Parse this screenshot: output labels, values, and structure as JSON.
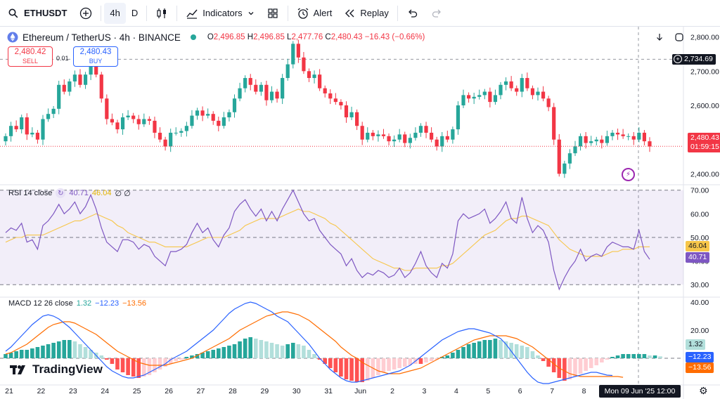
{
  "toolbar": {
    "symbol": "ETHUSDT",
    "interval": "4h",
    "interval_menu": "D",
    "indicators_label": "Indicators",
    "alert_label": "Alert",
    "replay_label": "Replay"
  },
  "header": {
    "title": "Ethereum / TetherUS · 4h · BINANCE",
    "o_label": "O",
    "o_value": "2,496.85",
    "h_label": "H",
    "h_value": "2,496.85",
    "l_label": "L",
    "l_value": "2,477.76",
    "c_label": "C",
    "c_value": "2,480.43",
    "change": "−16.43 (−0.66%)"
  },
  "trade": {
    "sell_price": "2,480.42",
    "sell_label": "SELL",
    "buy_price": "2,480.43",
    "buy_label": "BUY",
    "spread": "0.01"
  },
  "rsi_legend": {
    "name": "RSI 14 close",
    "rsi": "40.71",
    "ma": "46.04",
    "extra": "∅ ∅"
  },
  "macd_legend": {
    "name": "MACD 12 26 close",
    "hist": "1.32",
    "macd": "−12.23",
    "signal": "−13.56"
  },
  "logo_text": "TradingView",
  "crosshair_price": "2,734.69",
  "last_price": "2,480.43",
  "countdown": "01:59:15",
  "crosshair_date": "Mon 09 Jun '25   12:00",
  "colors": {
    "up": "#26a69a",
    "down": "#f23645",
    "rsi": "#7e57c2",
    "rsi_ma": "#f7c64a",
    "macd": "#2962ff",
    "signal": "#ff6d00",
    "hist_up": "#26a69a",
    "hist_up_light": "#b2dfdb",
    "hist_down": "#ff5252",
    "hist_down_light": "#ffcdd2"
  },
  "chart_data": [
    {
      "type": "candlestick",
      "title": "Ethereum / TetherUS · 4h · BINANCE",
      "ylim": [
        2370,
        2830
      ],
      "y_ticks": [
        "2,400.00",
        "2,500.00",
        "2,600.00",
        "2,700.00",
        "2,800.00"
      ],
      "y_tick_values": [
        2400,
        2500,
        2600,
        2700,
        2800
      ],
      "x_ticks": [
        "21",
        "22",
        "23",
        "24",
        "25",
        "26",
        "27",
        "28",
        "29",
        "30",
        "31",
        "Jun",
        "2",
        "3",
        "4",
        "5",
        "6",
        "7",
        "8"
      ],
      "candles_per_day": 6,
      "close": [
        2510,
        2540,
        2530,
        2565,
        2515,
        2520,
        2500,
        2560,
        2575,
        2590,
        2660,
        2640,
        2670,
        2690,
        2660,
        2690,
        2730,
        2690,
        2620,
        2560,
        2550,
        2530,
        2565,
        2570,
        2560,
        2545,
        2560,
        2555,
        2520,
        2500,
        2480,
        2520,
        2520,
        2525,
        2540,
        2570,
        2585,
        2570,
        2575,
        2555,
        2540,
        2565,
        2580,
        2620,
        2650,
        2680,
        2660,
        2640,
        2660,
        2615,
        2640,
        2620,
        2680,
        2720,
        2780,
        2740,
        2700,
        2680,
        2690,
        2650,
        2635,
        2620,
        2610,
        2600,
        2565,
        2580,
        2540,
        2500,
        2520,
        2510,
        2515,
        2510,
        2495,
        2500,
        2515,
        2490,
        2505,
        2520,
        2540,
        2520,
        2500,
        2480,
        2510,
        2500,
        2530,
        2600,
        2630,
        2620,
        2625,
        2630,
        2640,
        2610,
        2630,
        2660,
        2670,
        2650,
        2640,
        2680,
        2650,
        2630,
        2640,
        2620,
        2595,
        2500,
        2400,
        2430,
        2460,
        2480,
        2510,
        2490,
        2495,
        2500,
        2490,
        2510,
        2520,
        2515,
        2510,
        2510,
        2500,
        2520,
        2495,
        2480
      ],
      "ohlc_last": {
        "open": 2496.85,
        "high": 2496.85,
        "low": 2477.76,
        "close": 2480.43
      },
      "last_price": 2480.43,
      "crosshair_price": 2734.69
    },
    {
      "type": "line",
      "title": "RSI 14 close",
      "ylim": [
        25,
        72
      ],
      "y_ticks": [
        "30.00",
        "40.00",
        "50.00",
        "60.00",
        "70.00"
      ],
      "y_tick_values": [
        30,
        40,
        50,
        60,
        70
      ],
      "bands": [
        30,
        50,
        70
      ],
      "series": [
        {
          "name": "RSI",
          "values": [
            52,
            54,
            53,
            56,
            48,
            49,
            45,
            55,
            57,
            60,
            64,
            60,
            62,
            65,
            60,
            63,
            68,
            62,
            54,
            48,
            46,
            44,
            49,
            49,
            48,
            45,
            47,
            46,
            42,
            40,
            38,
            44,
            44,
            45,
            47,
            52,
            56,
            52,
            54,
            49,
            46,
            51,
            54,
            61,
            64,
            66,
            62,
            59,
            62,
            57,
            61,
            57,
            62,
            66,
            70,
            65,
            60,
            57,
            58,
            53,
            50,
            47,
            45,
            43,
            38,
            41,
            36,
            33,
            35,
            34,
            36,
            35,
            33,
            34,
            37,
            33,
            35,
            39,
            44,
            38,
            35,
            33,
            39,
            37,
            43,
            57,
            60,
            58,
            59,
            60,
            62,
            56,
            58,
            61,
            65,
            58,
            56,
            67,
            58,
            52,
            55,
            53,
            48,
            36,
            28,
            33,
            37,
            40,
            45,
            40,
            42,
            43,
            42,
            46,
            48,
            47,
            46,
            46,
            45,
            53,
            44,
            40.71
          ]
        },
        {
          "name": "MA",
          "values": [
            48,
            49,
            50,
            50,
            51,
            51,
            51,
            51,
            52,
            53,
            54,
            55,
            56,
            57,
            57,
            58,
            59,
            60,
            59,
            58,
            57,
            55,
            54,
            52,
            51,
            50,
            49,
            48,
            48,
            47,
            46,
            46,
            46,
            46,
            46,
            47,
            48,
            49,
            50,
            50,
            50,
            50,
            51,
            52,
            53,
            55,
            56,
            57,
            58,
            58,
            58,
            58,
            59,
            60,
            61,
            62,
            61,
            61,
            60,
            59,
            58,
            56,
            55,
            53,
            51,
            49,
            47,
            45,
            43,
            41,
            40,
            39,
            38,
            37,
            37,
            36,
            36,
            37,
            37,
            37,
            37,
            37,
            38,
            38,
            39,
            41,
            43,
            45,
            47,
            49,
            51,
            52,
            53,
            55,
            57,
            58,
            58,
            59,
            59,
            58,
            57,
            56,
            55,
            52,
            49,
            47,
            45,
            44,
            43,
            42,
            42,
            42,
            42,
            43,
            44,
            44,
            45,
            45,
            45,
            46,
            46,
            46.04
          ]
        }
      ],
      "rsi": 40.71,
      "ma": 46.04
    },
    {
      "type": "bar",
      "title": "MACD 12 26 close",
      "ylim": [
        -19,
        43
      ],
      "y_ticks": [
        "20.00",
        "40.00"
      ],
      "y_tick_values": [
        20,
        40
      ],
      "series": [
        {
          "name": "Histogram",
          "values": [
            3,
            4,
            5,
            6,
            6,
            7,
            8,
            9,
            10,
            11,
            12,
            13,
            13,
            12,
            10,
            8,
            6,
            4,
            2,
            -1,
            -4,
            -8,
            -10,
            -12,
            -13,
            -14,
            -13,
            -12,
            -10,
            -8,
            -6,
            -4,
            -2,
            -1,
            1,
            2,
            3,
            4,
            5,
            6,
            7,
            8,
            9,
            10,
            12,
            14,
            15,
            14,
            13,
            12,
            11,
            10,
            9,
            10,
            11,
            10,
            9,
            6,
            3,
            -1,
            -4,
            -7,
            -10,
            -13,
            -15,
            -16,
            -17,
            -17,
            -16,
            -14,
            -12,
            -10,
            -9,
            -8,
            -7,
            -6,
            -5,
            -4,
            -4,
            -3,
            -2,
            -1,
            1,
            2,
            4,
            6,
            8,
            10,
            11,
            12,
            13,
            13,
            14,
            13,
            12,
            11,
            10,
            9,
            8,
            5,
            2,
            -2,
            -6,
            -10,
            -14,
            -16,
            -15,
            -13,
            -11,
            -9,
            -7,
            -5,
            -3,
            -1,
            1,
            2,
            3,
            3,
            3,
            3,
            3,
            2,
            2,
            1.32
          ]
        },
        {
          "name": "MACD",
          "values": [
            5,
            8,
            12,
            16,
            20,
            24,
            27,
            30,
            31,
            30,
            28,
            25,
            22,
            18,
            14,
            10,
            6,
            2,
            -2,
            -6,
            -9,
            -11,
            -13,
            -14,
            -14,
            -13,
            -12,
            -10,
            -8,
            -6,
            -4,
            -1,
            1,
            3,
            5,
            8,
            11,
            14,
            17,
            20,
            24,
            28,
            32,
            35,
            37,
            39,
            40,
            39,
            37,
            35,
            33,
            30,
            28,
            26,
            22,
            18,
            14,
            10,
            5,
            0,
            -4,
            -8,
            -11,
            -14,
            -16,
            -17,
            -17,
            -16,
            -15,
            -14,
            -13,
            -12,
            -11,
            -10,
            -9,
            -7,
            -5,
            -2,
            1,
            4,
            7,
            10,
            13,
            15,
            17,
            19,
            20,
            21,
            21,
            20,
            19,
            18,
            16,
            14,
            10,
            5,
            0,
            -5,
            -10,
            -14,
            -17,
            -18,
            -18,
            -17,
            -16,
            -15,
            -14,
            -13,
            -12,
            -11,
            -10,
            -10,
            -11,
            -12,
            -12.23
          ]
        },
        {
          "name": "Signal",
          "values": [
            3,
            4,
            6,
            8,
            10,
            13,
            16,
            19,
            22,
            24,
            25,
            26,
            26,
            25,
            23,
            21,
            19,
            17,
            14,
            11,
            8,
            5,
            3,
            1,
            -1,
            -3,
            -4,
            -5,
            -5,
            -5,
            -5,
            -4,
            -3,
            -2,
            -1,
            0,
            2,
            4,
            6,
            8,
            10,
            12,
            14,
            17,
            20,
            22,
            24,
            26,
            28,
            30,
            31,
            32,
            33,
            33,
            32,
            31,
            29,
            27,
            24,
            21,
            18,
            15,
            12,
            8,
            5,
            2,
            0,
            -3,
            -5,
            -7,
            -9,
            -10,
            -11,
            -11,
            -11,
            -10,
            -9,
            -8,
            -7,
            -5,
            -3,
            -1,
            1,
            3,
            5,
            7,
            9,
            11,
            13,
            14,
            15,
            16,
            16,
            16,
            16,
            15,
            14,
            12,
            10,
            8,
            5,
            2,
            -1,
            -4,
            -7,
            -9,
            -11,
            -12,
            -13,
            -13,
            -13,
            -13,
            -13,
            -13,
            -13,
            -13,
            -13.56
          ]
        }
      ],
      "hist": 1.32,
      "macd": -12.23,
      "signal": -13.56
    }
  ]
}
